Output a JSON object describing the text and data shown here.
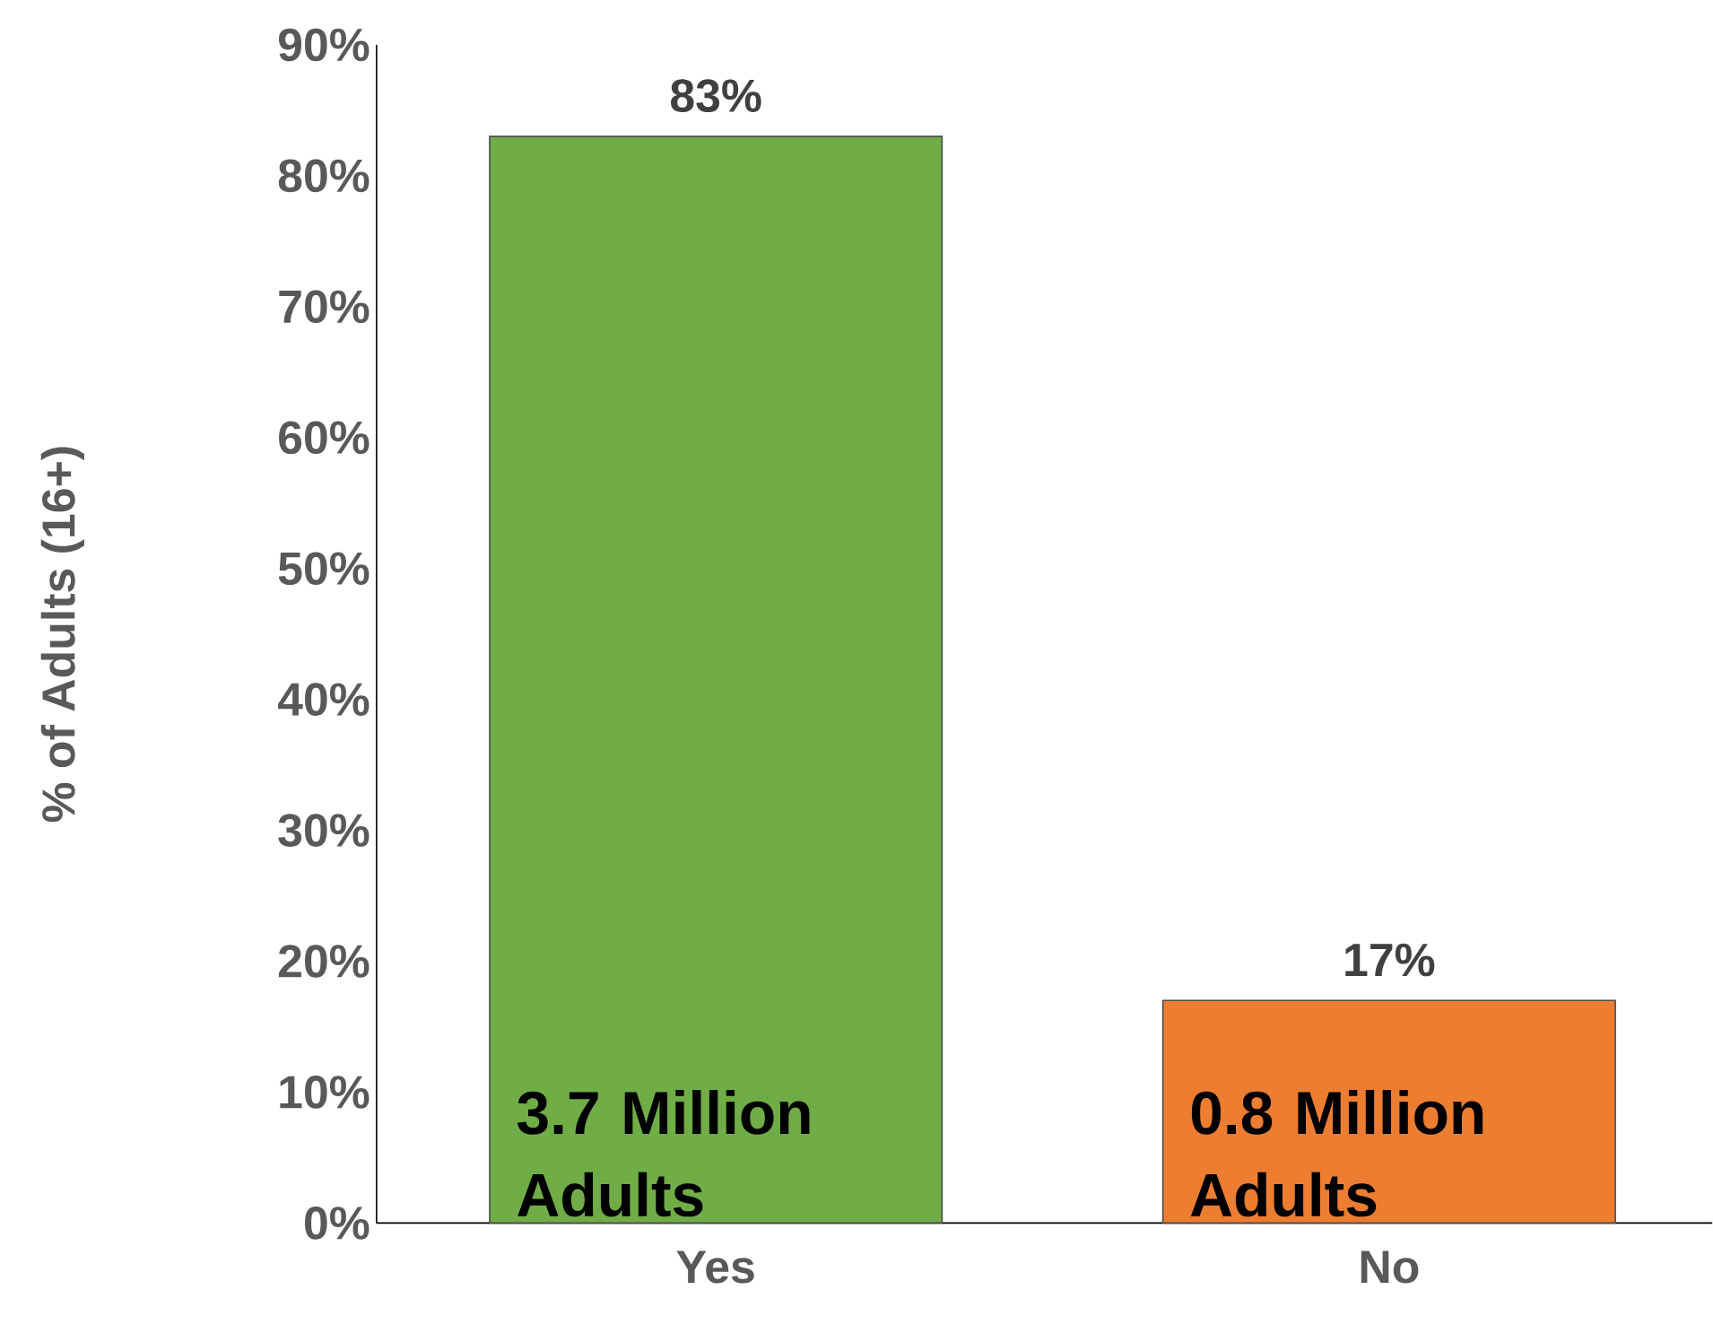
{
  "chart_data": {
    "type": "bar",
    "ylabel": "% of Adults (16+)",
    "categories": [
      "Yes",
      "No"
    ],
    "values": [
      83,
      17
    ],
    "colors": [
      "#70ad47",
      "#ed7d31"
    ],
    "value_labels": [
      "83%",
      "17%"
    ],
    "ylim": [
      0,
      90
    ],
    "yticks": [
      {
        "value": 0,
        "label": "0%"
      },
      {
        "value": 10,
        "label": "10%"
      },
      {
        "value": 20,
        "label": "20%"
      },
      {
        "value": 30,
        "label": "30%"
      },
      {
        "value": 40,
        "label": "40%"
      },
      {
        "value": 50,
        "label": "50%"
      },
      {
        "value": 60,
        "label": "60%"
      },
      {
        "value": 70,
        "label": "70%"
      },
      {
        "value": 80,
        "label": "80%"
      },
      {
        "value": 90,
        "label": "90%"
      }
    ],
    "annotations": [
      "3.7 Million Adults",
      "0.8 Million Adults"
    ],
    "grid": false
  }
}
